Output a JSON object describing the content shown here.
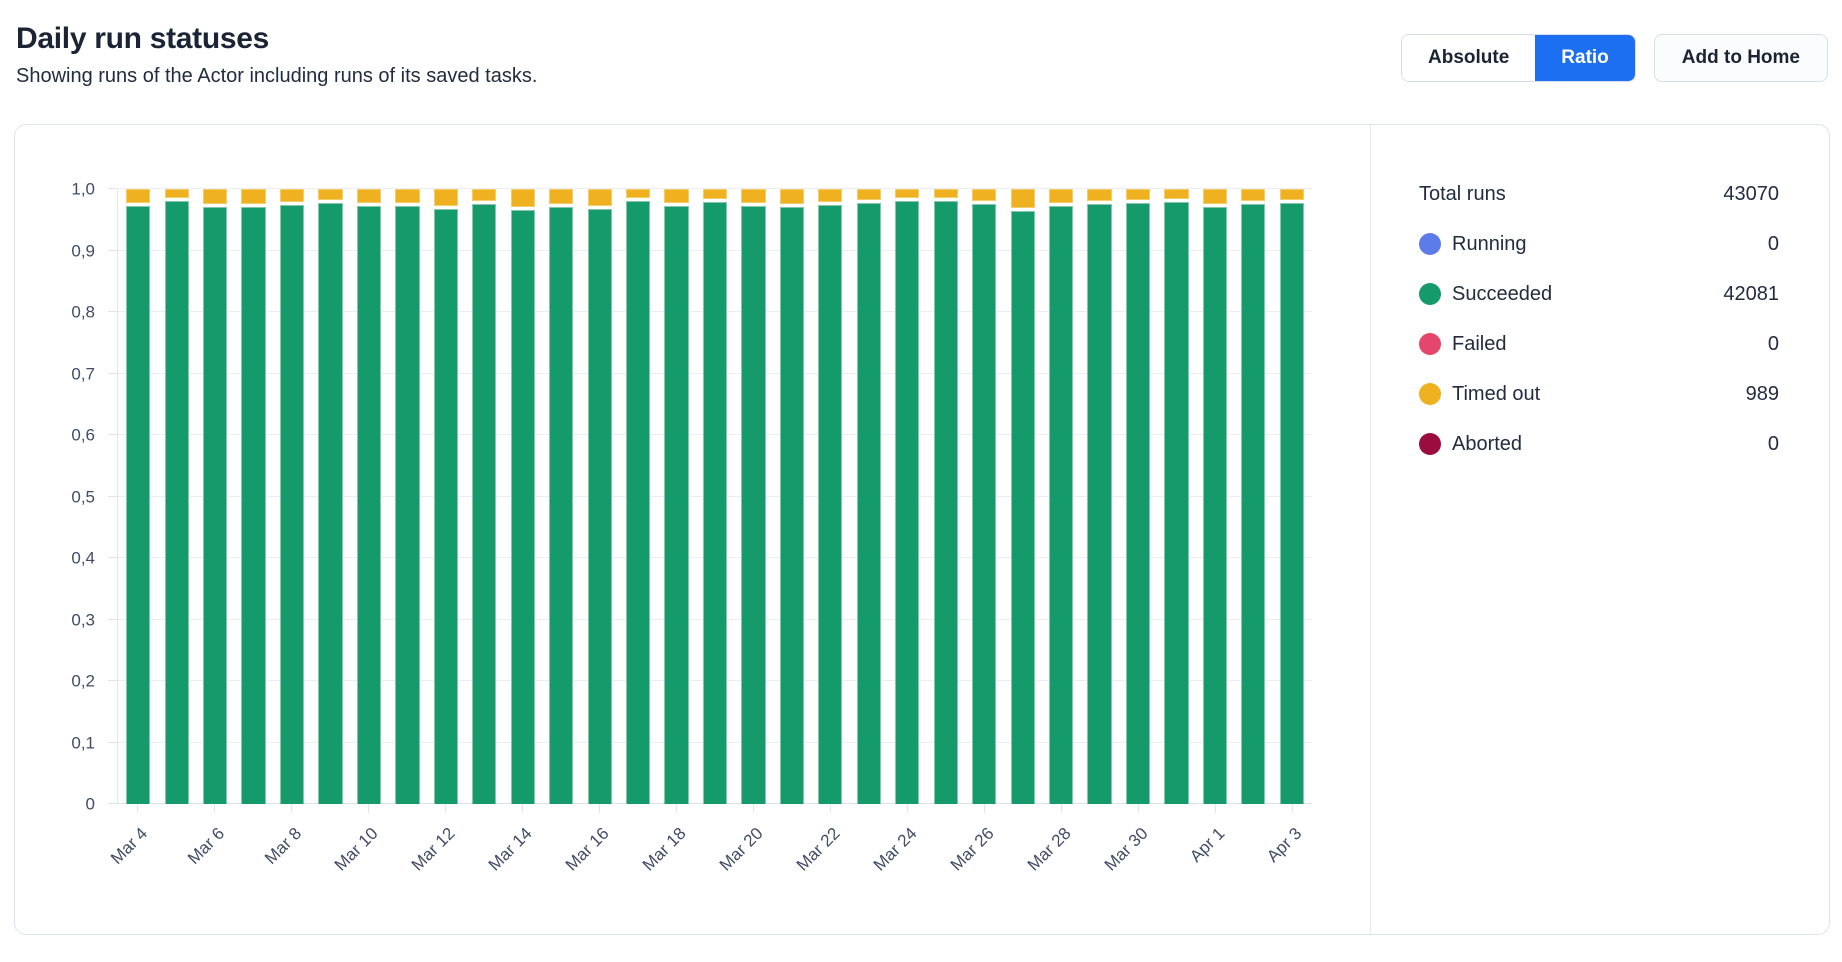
{
  "header": {
    "title": "Daily run statuses",
    "subtitle": "Showing runs of the Actor including runs of its saved tasks.",
    "toggle": {
      "absolute_label": "Absolute",
      "ratio_label": "Ratio",
      "active": "Ratio"
    },
    "add_to_home_label": "Add to Home"
  },
  "colors": {
    "accent_blue": "#1d6ff2",
    "running": "#5c7de9",
    "succeeded": "#159a6c",
    "failed": "#e5476c",
    "timed_out": "#efb11f",
    "aborted": "#9c0d3f"
  },
  "legend": {
    "rows": [
      {
        "label": "Total runs",
        "value": "43070",
        "color": null
      },
      {
        "label": "Running",
        "value": "0",
        "color": "#5c7de9"
      },
      {
        "label": "Succeeded",
        "value": "42081",
        "color": "#159a6c"
      },
      {
        "label": "Failed",
        "value": "0",
        "color": "#e5476c"
      },
      {
        "label": "Timed out",
        "value": "989",
        "color": "#efb11f"
      },
      {
        "label": "Aborted",
        "value": "0",
        "color": "#9c0d3f"
      }
    ]
  },
  "chart_data": {
    "type": "bar",
    "stacked": true,
    "title": "Daily run statuses",
    "xlabel": "",
    "ylabel": "",
    "ylim": [
      0,
      1
    ],
    "grid": "horizontal",
    "legend_position": "right",
    "xtick_every": 2,
    "yticks": [
      "0",
      "0,1",
      "0,2",
      "0,3",
      "0,4",
      "0,5",
      "0,6",
      "0,7",
      "0,8",
      "0,9",
      "1,0"
    ],
    "x": [
      "Mar 4",
      "Mar 5",
      "Mar 6",
      "Mar 7",
      "Mar 8",
      "Mar 9",
      "Mar 10",
      "Mar 11",
      "Mar 12",
      "Mar 13",
      "Mar 14",
      "Mar 15",
      "Mar 16",
      "Mar 17",
      "Mar 18",
      "Mar 19",
      "Mar 20",
      "Mar 21",
      "Mar 22",
      "Mar 23",
      "Mar 24",
      "Mar 25",
      "Mar 26",
      "Mar 27",
      "Mar 28",
      "Mar 29",
      "Mar 30",
      "Mar 31",
      "Apr 1",
      "Apr 2",
      "Apr 3"
    ],
    "series": [
      {
        "name": "Succeeded",
        "color": "#159a6c",
        "values": [
          0.972,
          0.981,
          0.97,
          0.97,
          0.974,
          0.978,
          0.973,
          0.972,
          0.968,
          0.975,
          0.966,
          0.97,
          0.968,
          0.98,
          0.973,
          0.979,
          0.972,
          0.97,
          0.974,
          0.977,
          0.98,
          0.98,
          0.976,
          0.964,
          0.972,
          0.975,
          0.978,
          0.979,
          0.971,
          0.975,
          0.977
        ]
      },
      {
        "name": "Timed out",
        "color": "#efb11f",
        "values": [
          0.028,
          0.019,
          0.03,
          0.03,
          0.026,
          0.022,
          0.027,
          0.028,
          0.032,
          0.025,
          0.034,
          0.03,
          0.032,
          0.02,
          0.027,
          0.021,
          0.028,
          0.03,
          0.026,
          0.023,
          0.02,
          0.02,
          0.024,
          0.036,
          0.028,
          0.025,
          0.022,
          0.021,
          0.029,
          0.025,
          0.023
        ]
      }
    ]
  }
}
